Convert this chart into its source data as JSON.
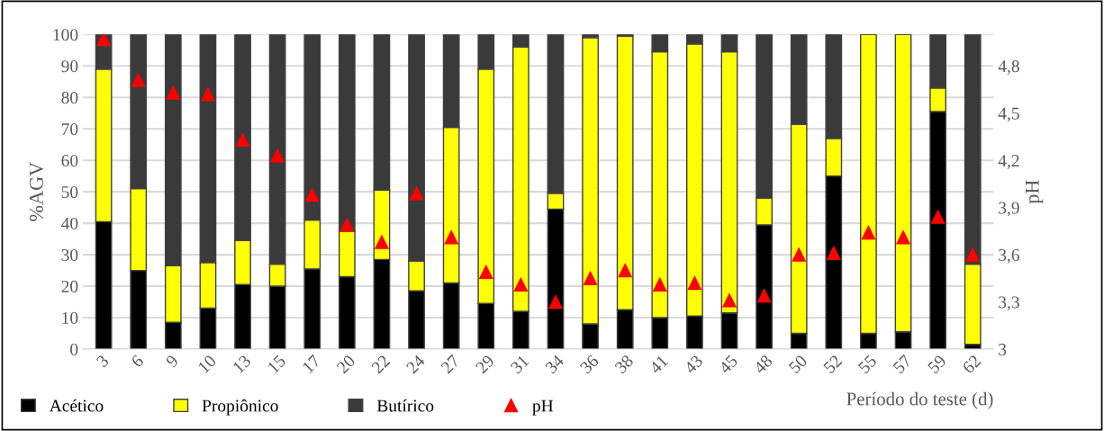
{
  "chart_data": {
    "type": "bar",
    "stacked": true,
    "xlabel": "Período do teste (d)",
    "ylabel": "%AGV",
    "y2label": "pH",
    "categories": [
      "3",
      "6",
      "9",
      "10",
      "13",
      "15",
      "17",
      "20",
      "22",
      "24",
      "27",
      "29",
      "31",
      "34",
      "36",
      "38",
      "41",
      "43",
      "45",
      "48",
      "50",
      "52",
      "55",
      "57",
      "59",
      "62"
    ],
    "series": [
      {
        "name": "Acético",
        "color": "#000000",
        "values": [
          40.5,
          25,
          8.5,
          13,
          20.5,
          20,
          25.5,
          23,
          28.5,
          18.5,
          21,
          14.5,
          12,
          44.5,
          8,
          12.5,
          10,
          10.5,
          11.5,
          39.5,
          5,
          55,
          5,
          5.5,
          75.5,
          1.5
        ]
      },
      {
        "name": "Propiônico",
        "color": "#ffff00",
        "values": [
          48.5,
          26,
          18,
          14.5,
          14,
          7,
          15.5,
          14.5,
          22,
          9.5,
          49.5,
          74.5,
          84,
          5,
          91,
          87,
          84.5,
          86.5,
          83,
          8.5,
          66.5,
          12,
          95,
          94.5,
          7.5,
          25.5
        ]
      },
      {
        "name": "Butírico",
        "color": "#3a3a3a",
        "values": [
          11,
          49,
          73.5,
          72.5,
          65.5,
          73,
          59,
          62.5,
          49.5,
          72,
          29.5,
          11,
          4,
          50.5,
          1,
          0.5,
          5.5,
          3,
          5.5,
          52,
          28.5,
          33,
          0,
          0,
          17,
          73
        ]
      },
      {
        "name": "pH",
        "type": "scatter",
        "axis": "y2",
        "marker": "triangle",
        "color": "#ff0000",
        "values": [
          4.97,
          4.71,
          4.63,
          4.62,
          4.33,
          4.23,
          3.98,
          3.79,
          3.68,
          3.99,
          3.71,
          3.49,
          3.41,
          3.3,
          3.45,
          3.5,
          3.41,
          3.42,
          3.31,
          3.34,
          3.6,
          3.61,
          3.74,
          3.71,
          3.84,
          3.6
        ]
      }
    ],
    "ylim": [
      0,
      100
    ],
    "yticks": [
      0,
      10,
      20,
      30,
      40,
      50,
      60,
      70,
      80,
      90,
      100
    ],
    "y2lim": [
      3,
      5
    ],
    "y2ticks": [
      3,
      {
        "value": 3.3,
        "label": "3,3"
      },
      {
        "value": 3.6,
        "label": "3,6"
      },
      {
        "value": 3.9,
        "label": "3,9"
      },
      {
        "value": 4.2,
        "label": "4,2"
      },
      {
        "value": 4.5,
        "label": "4,5"
      },
      {
        "value": 4.8,
        "label": "4,8"
      }
    ],
    "grid": "y",
    "legend": "bottom left"
  }
}
